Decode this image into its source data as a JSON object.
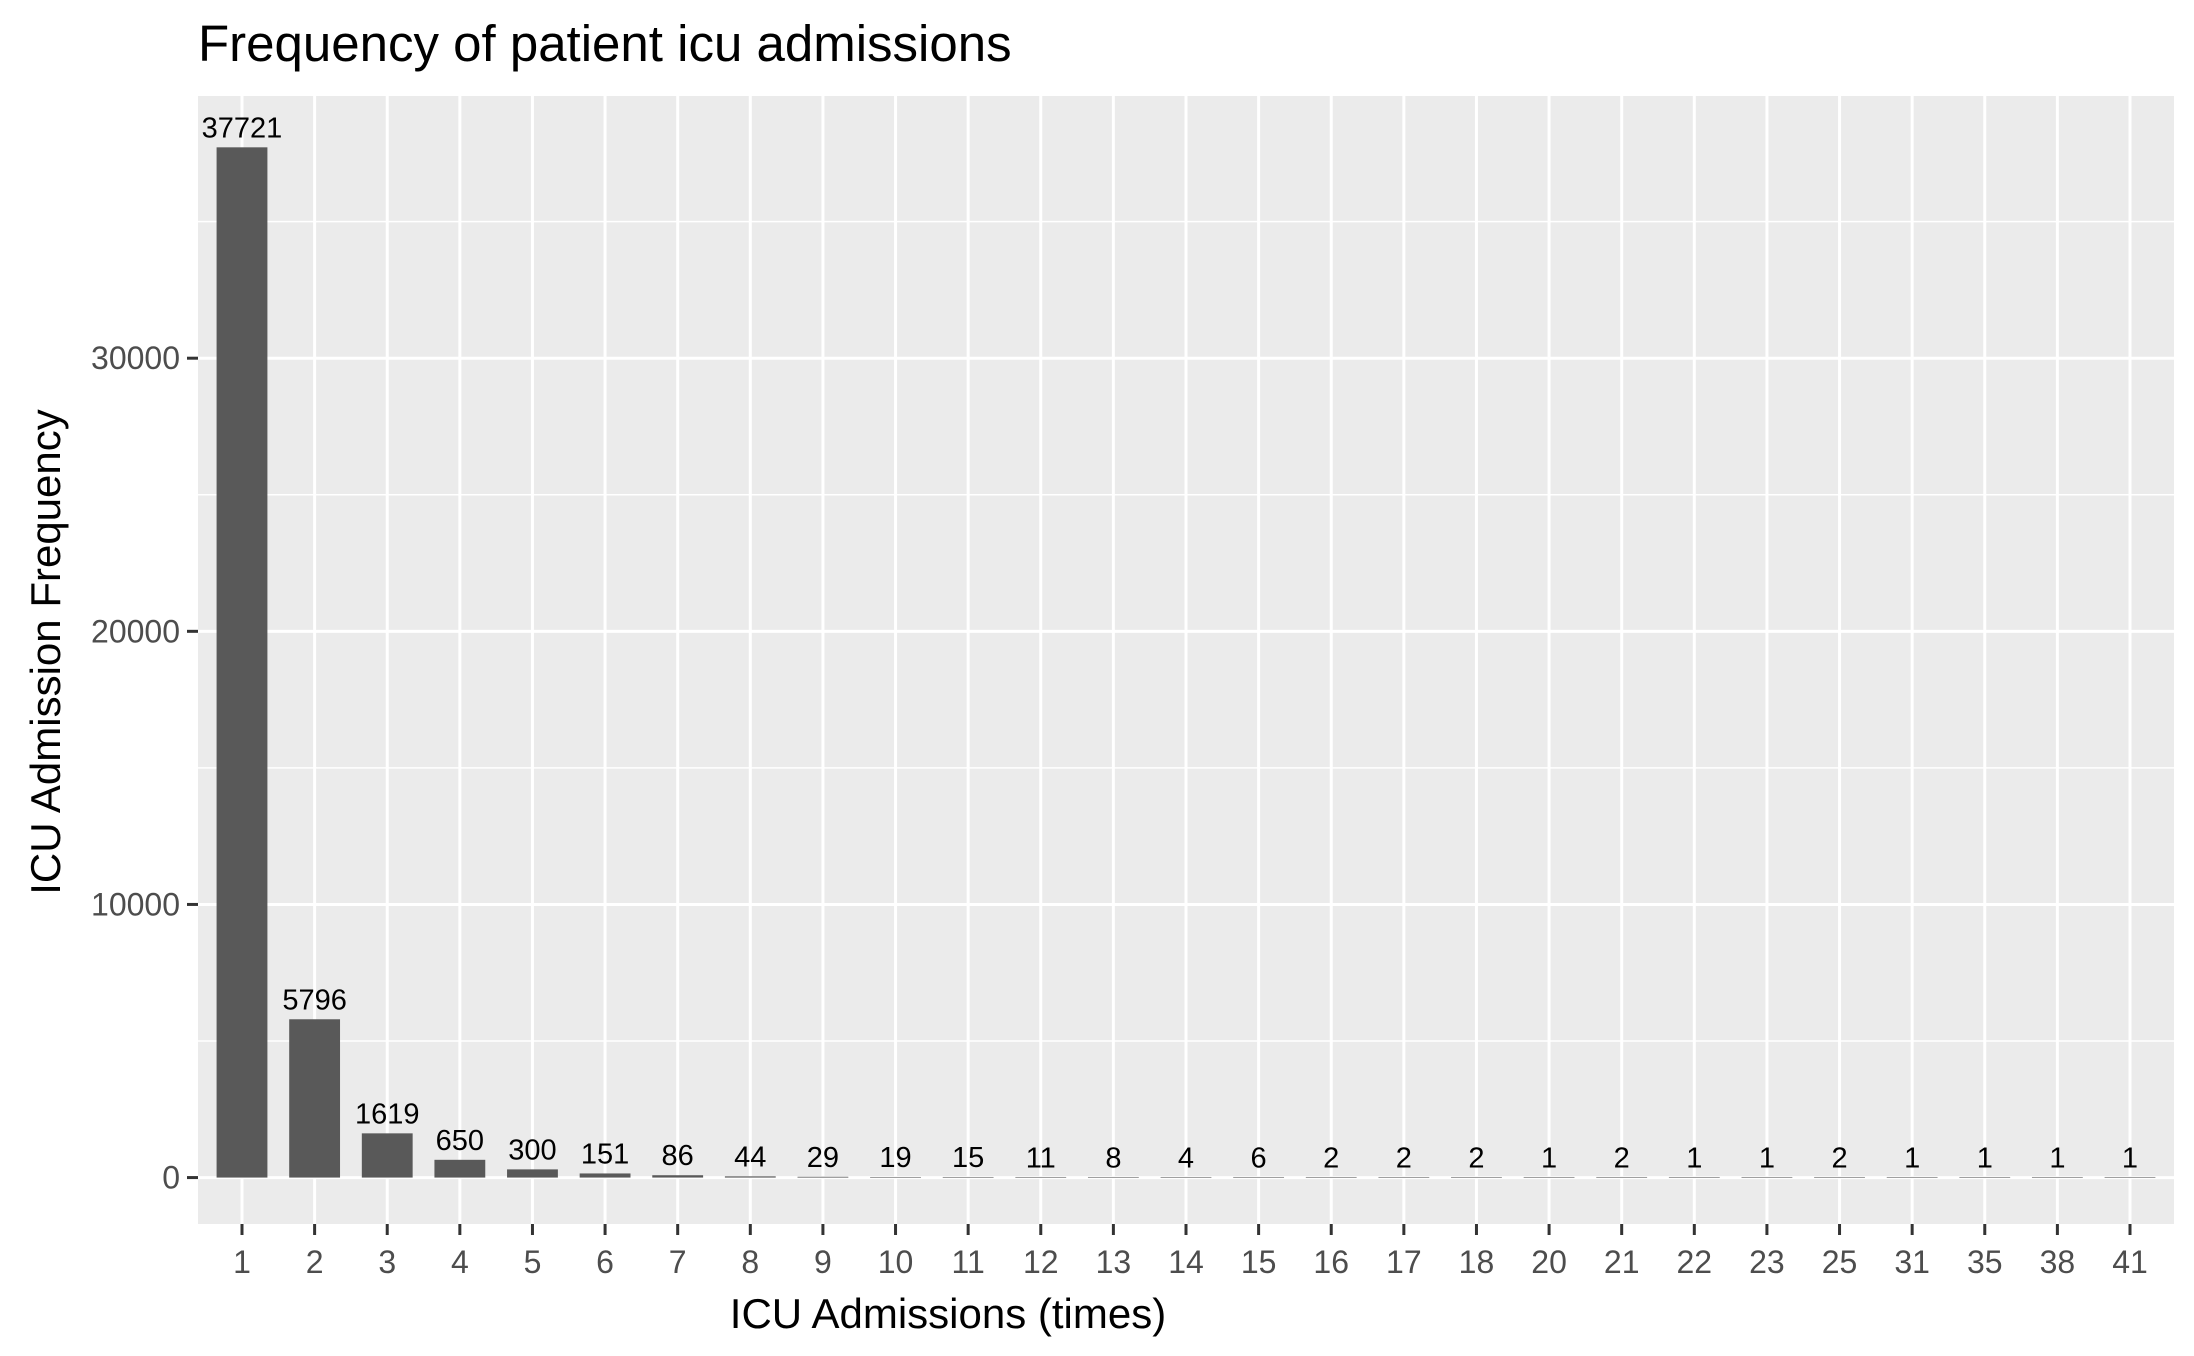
{
  "chart_data": {
    "type": "bar",
    "title": "Frequency of patient icu admissions",
    "xlabel": "ICU Admissions (times)",
    "ylabel": "ICU Admission Frequency",
    "categories": [
      "1",
      "2",
      "3",
      "4",
      "5",
      "6",
      "7",
      "8",
      "9",
      "10",
      "11",
      "12",
      "13",
      "14",
      "15",
      "16",
      "17",
      "18",
      "20",
      "21",
      "22",
      "23",
      "25",
      "31",
      "35",
      "38",
      "41"
    ],
    "values": [
      37721,
      5796,
      1619,
      650,
      300,
      151,
      86,
      44,
      29,
      19,
      15,
      11,
      8,
      4,
      6,
      2,
      2,
      2,
      1,
      2,
      1,
      1,
      2,
      1,
      1,
      1,
      1
    ],
    "data_labels": [
      "37721",
      "5796",
      "1619",
      "650",
      "300",
      "151",
      "86",
      "44",
      "29",
      "19",
      "15",
      "11",
      "8",
      "4",
      "6",
      "2",
      "2",
      "2",
      "1",
      "2",
      "1",
      "1",
      "2",
      "1",
      "1",
      "1",
      "1"
    ],
    "y_ticks": [
      "0",
      "10000",
      "20000",
      "30000"
    ],
    "ylim": [
      -1700,
      39600
    ],
    "grid": true,
    "legend": "none",
    "colors": {
      "panel_background": "#EBEBEB",
      "grid_major": "#FFFFFF",
      "bar_fill": "#595959",
      "axis_text": "#4D4D4D",
      "data_label_text": "#000000"
    }
  }
}
